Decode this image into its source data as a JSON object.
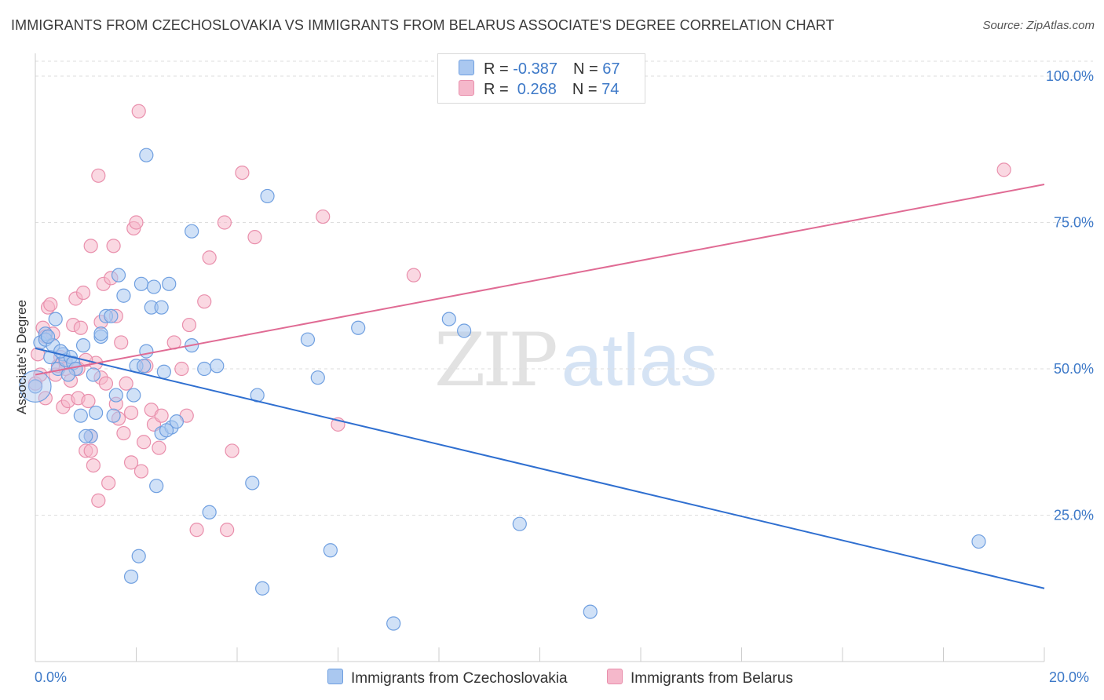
{
  "title": "IMMIGRANTS FROM CZECHOSLOVAKIA VS IMMIGRANTS FROM BELARUS ASSOCIATE'S DEGREE CORRELATION CHART",
  "source": "Source: ZipAtlas.com",
  "watermark": {
    "zip": "ZIP",
    "atlas": "atlas"
  },
  "legend": {
    "series1": {
      "r_label": "R = ",
      "r_value": "-0.387",
      "n_label": "N = ",
      "n_value": "67"
    },
    "series2": {
      "r_label": "R = ",
      "r_value": " 0.268",
      "n_label": "N = ",
      "n_value": "74"
    }
  },
  "colors": {
    "blue_fill": "#aac8f0",
    "blue_stroke": "#6f9fe0",
    "blue_line": "#2f6fd0",
    "pink_fill": "#f5b8cb",
    "pink_stroke": "#e98fac",
    "pink_line": "#e06b94",
    "grid": "#dedede",
    "axis": "#cccccc",
    "tick_label": "#3d79c8"
  },
  "chart_data": {
    "type": "scatter",
    "title": "IMMIGRANTS FROM CZECHOSLOVAKIA VS IMMIGRANTS FROM BELARUS ASSOCIATE'S DEGREE CORRELATION CHART",
    "xlabel": "",
    "ylabel": "Associate's Degree",
    "xlim": [
      0,
      20
    ],
    "ylim": [
      0,
      105
    ],
    "x_tick_labels": [
      "0.0%",
      "20.0%"
    ],
    "y_ticks": [
      25,
      50,
      75,
      100
    ],
    "y_tick_labels": [
      "25.0%",
      "50.0%",
      "75.0%",
      "100.0%"
    ],
    "grid": true,
    "legend_position": "bottom",
    "series": [
      {
        "name": "Immigrants from Czechoslovakia",
        "color": "#6f9fe0",
        "trend": {
          "x": [
            0,
            20
          ],
          "y": [
            53.5,
            12.5
          ]
        },
        "points": [
          [
            0.0,
            47.0
          ],
          [
            0.1,
            54.5
          ],
          [
            0.2,
            56.0
          ],
          [
            0.2,
            55.0
          ],
          [
            0.3,
            52.0
          ],
          [
            0.35,
            54.0
          ],
          [
            0.4,
            58.5
          ],
          [
            0.45,
            50.0
          ],
          [
            0.55,
            52.5
          ],
          [
            0.6,
            51.5
          ],
          [
            0.7,
            52.0
          ],
          [
            0.75,
            51.0
          ],
          [
            0.8,
            50.0
          ],
          [
            0.9,
            42.0
          ],
          [
            0.95,
            54.0
          ],
          [
            1.1,
            38.5
          ],
          [
            1.15,
            49.0
          ],
          [
            1.2,
            42.5
          ],
          [
            1.3,
            55.5
          ],
          [
            1.3,
            56.0
          ],
          [
            1.4,
            59.0
          ],
          [
            1.5,
            59.0
          ],
          [
            1.55,
            42.0
          ],
          [
            1.6,
            45.5
          ],
          [
            1.65,
            66.0
          ],
          [
            1.75,
            62.5
          ],
          [
            1.9,
            14.5
          ],
          [
            1.95,
            45.5
          ],
          [
            2.0,
            50.5
          ],
          [
            2.05,
            18.0
          ],
          [
            2.15,
            50.5
          ],
          [
            2.1,
            64.5
          ],
          [
            2.2,
            53.0
          ],
          [
            2.2,
            86.5
          ],
          [
            2.3,
            60.5
          ],
          [
            2.35,
            64.0
          ],
          [
            2.4,
            30.0
          ],
          [
            2.5,
            39.0
          ],
          [
            2.5,
            60.5
          ],
          [
            2.55,
            49.5
          ],
          [
            2.65,
            64.5
          ],
          [
            2.7,
            40.0
          ],
          [
            2.8,
            41.0
          ],
          [
            3.1,
            73.5
          ],
          [
            3.1,
            54.0
          ],
          [
            3.35,
            50.0
          ],
          [
            3.45,
            25.5
          ],
          [
            3.6,
            50.5
          ],
          [
            4.3,
            30.5
          ],
          [
            4.4,
            45.5
          ],
          [
            4.5,
            12.5
          ],
          [
            4.6,
            79.5
          ],
          [
            5.4,
            55.0
          ],
          [
            5.6,
            48.5
          ],
          [
            5.85,
            19.0
          ],
          [
            6.4,
            57.0
          ],
          [
            7.1,
            6.5
          ],
          [
            8.2,
            58.5
          ],
          [
            8.5,
            56.5
          ],
          [
            9.6,
            23.5
          ],
          [
            11.0,
            8.5
          ],
          [
            18.7,
            20.5
          ],
          [
            0.25,
            55.5
          ],
          [
            0.65,
            49.0
          ],
          [
            1.0,
            38.5
          ],
          [
            2.6,
            39.5
          ],
          [
            0.5,
            53.0
          ]
        ]
      },
      {
        "name": "Immigrants from Belarus",
        "color": "#e98fac",
        "trend": {
          "x": [
            0,
            20
          ],
          "y": [
            49.0,
            81.5
          ]
        },
        "points": [
          [
            0.0,
            47.5
          ],
          [
            0.05,
            52.5
          ],
          [
            0.1,
            49.0
          ],
          [
            0.15,
            57.0
          ],
          [
            0.2,
            55.5
          ],
          [
            0.25,
            60.5
          ],
          [
            0.3,
            61.0
          ],
          [
            0.35,
            56.0
          ],
          [
            0.4,
            49.0
          ],
          [
            0.45,
            50.5
          ],
          [
            0.5,
            52.0
          ],
          [
            0.55,
            43.5
          ],
          [
            0.6,
            51.0
          ],
          [
            0.65,
            44.5
          ],
          [
            0.7,
            48.0
          ],
          [
            0.75,
            57.5
          ],
          [
            0.8,
            62.0
          ],
          [
            0.85,
            45.0
          ],
          [
            0.9,
            57.0
          ],
          [
            0.95,
            63.0
          ],
          [
            1.0,
            36.0
          ],
          [
            1.05,
            44.5
          ],
          [
            1.1,
            38.5
          ],
          [
            1.1,
            36.0
          ],
          [
            1.15,
            33.5
          ],
          [
            1.2,
            51.0
          ],
          [
            1.25,
            27.5
          ],
          [
            1.3,
            48.5
          ],
          [
            1.3,
            58.0
          ],
          [
            1.35,
            64.5
          ],
          [
            1.4,
            47.5
          ],
          [
            1.45,
            30.5
          ],
          [
            1.5,
            65.5
          ],
          [
            1.55,
            71.0
          ],
          [
            1.6,
            44.0
          ],
          [
            1.65,
            41.5
          ],
          [
            1.7,
            54.5
          ],
          [
            1.75,
            39.0
          ],
          [
            1.8,
            47.5
          ],
          [
            1.9,
            42.5
          ],
          [
            1.9,
            34.0
          ],
          [
            1.95,
            74.0
          ],
          [
            2.0,
            75.0
          ],
          [
            2.05,
            94.0
          ],
          [
            2.1,
            32.5
          ],
          [
            2.15,
            37.5
          ],
          [
            2.3,
            43.0
          ],
          [
            2.35,
            40.5
          ],
          [
            2.45,
            36.5
          ],
          [
            2.5,
            42.0
          ],
          [
            2.75,
            54.5
          ],
          [
            2.9,
            50.0
          ],
          [
            3.0,
            42.0
          ],
          [
            3.05,
            57.5
          ],
          [
            3.2,
            22.5
          ],
          [
            3.35,
            61.5
          ],
          [
            3.45,
            69.0
          ],
          [
            3.75,
            75.0
          ],
          [
            3.8,
            22.5
          ],
          [
            3.9,
            36.0
          ],
          [
            4.1,
            83.5
          ],
          [
            4.35,
            72.5
          ],
          [
            5.7,
            76.0
          ],
          [
            6.0,
            40.5
          ],
          [
            7.5,
            66.0
          ],
          [
            19.2,
            84.0
          ],
          [
            1.25,
            83.0
          ],
          [
            1.1,
            71.0
          ],
          [
            0.2,
            45.0
          ],
          [
            0.6,
            50.0
          ],
          [
            1.0,
            51.5
          ],
          [
            1.6,
            59.0
          ],
          [
            2.2,
            50.5
          ],
          [
            0.85,
            50.0
          ]
        ]
      }
    ]
  },
  "bottom_legend": [
    "Immigrants from Czechoslovakia",
    "Immigrants from Belarus"
  ]
}
